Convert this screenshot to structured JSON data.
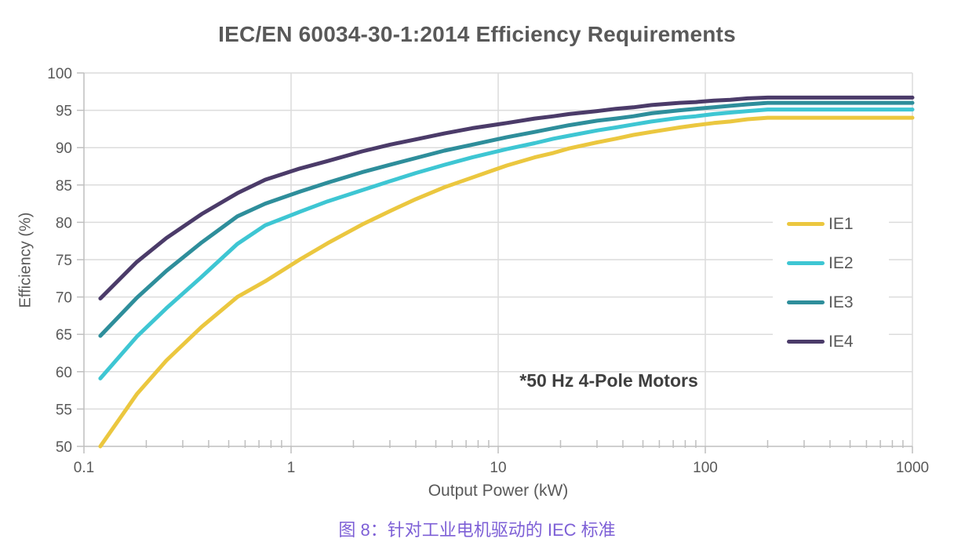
{
  "caption": "图 8：针对工业电机驱动的 IEC 标准",
  "colors": {
    "title_text": "#595959",
    "axis_text": "#595959",
    "annotation_text": "#3f3f3f",
    "caption_text": "#7d5fd6",
    "grid": "#dcdcdc",
    "axis_line": "#bfbfbf",
    "background": "#ffffff"
  },
  "chart_data": {
    "type": "line",
    "title": "IEC/EN 60034-30-1:2014 Efficiency Requirements",
    "xlabel": "Output Power (kW)",
    "ylabel": "Efficiency (%)",
    "annotation": "*50 Hz 4-Pole Motors",
    "x_scale": "log",
    "xlim": [
      0.1,
      1000
    ],
    "ylim": [
      50,
      100
    ],
    "x_ticks": [
      0.1,
      1,
      10,
      100,
      1000
    ],
    "x_tick_labels": [
      "0.1",
      "1",
      "10",
      "100",
      "1000"
    ],
    "y_ticks": [
      50,
      55,
      60,
      65,
      70,
      75,
      80,
      85,
      90,
      95,
      100
    ],
    "grid": true,
    "legend_position": "right",
    "x": [
      0.12,
      0.18,
      0.25,
      0.37,
      0.55,
      0.75,
      1.1,
      1.5,
      2.2,
      3,
      4,
      5.5,
      7.5,
      11,
      15,
      18.5,
      22,
      30,
      37,
      45,
      55,
      75,
      90,
      110,
      132,
      160,
      200,
      1000
    ],
    "series": [
      {
        "name": "IE1",
        "color": "#ebc73f",
        "values": [
          50.0,
          57.0,
          61.5,
          66.0,
          70.0,
          72.1,
          75.0,
          77.2,
          79.7,
          81.5,
          83.1,
          84.7,
          86.0,
          87.6,
          88.7,
          89.3,
          89.9,
          90.7,
          91.2,
          91.7,
          92.1,
          92.7,
          93.0,
          93.3,
          93.5,
          93.8,
          94.0,
          94.0
        ]
      },
      {
        "name": "IE2",
        "color": "#3ec6d3",
        "values": [
          59.1,
          64.7,
          68.5,
          72.7,
          77.1,
          79.6,
          81.4,
          82.8,
          84.3,
          85.5,
          86.6,
          87.7,
          88.7,
          89.8,
          90.6,
          91.2,
          91.6,
          92.3,
          92.7,
          93.1,
          93.5,
          94.0,
          94.2,
          94.5,
          94.7,
          94.9,
          95.1,
          95.1
        ]
      },
      {
        "name": "IE3",
        "color": "#2e8e9b",
        "values": [
          64.8,
          69.9,
          73.5,
          77.3,
          80.8,
          82.5,
          84.1,
          85.3,
          86.7,
          87.7,
          88.6,
          89.6,
          90.4,
          91.4,
          92.1,
          92.6,
          93.0,
          93.6,
          93.9,
          94.2,
          94.6,
          95.0,
          95.2,
          95.4,
          95.6,
          95.8,
          96.0,
          96.0
        ]
      },
      {
        "name": "IE4",
        "color": "#4b3b69",
        "values": [
          69.8,
          74.7,
          77.9,
          81.1,
          83.9,
          85.7,
          87.2,
          88.2,
          89.5,
          90.4,
          91.1,
          91.9,
          92.6,
          93.3,
          93.9,
          94.2,
          94.5,
          94.9,
          95.2,
          95.4,
          95.7,
          96.0,
          96.1,
          96.3,
          96.4,
          96.6,
          96.7,
          96.7
        ]
      }
    ]
  }
}
